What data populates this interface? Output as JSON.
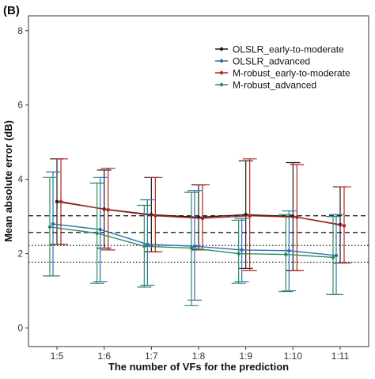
{
  "panel_label": "(B)",
  "chart_data": {
    "type": "line",
    "xlabel": "The number of VFs for the prediction",
    "ylabel": "Mean absolute error (dB)",
    "categories": [
      "1:5",
      "1:6",
      "1:7",
      "1:8",
      "1:9",
      "1:10",
      "1:11"
    ],
    "ylim": [
      -0.5,
      8.4
    ],
    "yticks": [
      0,
      2,
      4,
      6,
      8
    ],
    "grid": false,
    "legend_position": "top-right",
    "series": [
      {
        "name": "OLSLR_early-to-moderate",
        "color": "#1a1a1a",
        "values": [
          3.4,
          3.2,
          3.05,
          2.98,
          3.05,
          3.0,
          2.78
        ],
        "lower": [
          2.25,
          2.15,
          2.05,
          2.1,
          1.6,
          1.55,
          1.75
        ],
        "upper": [
          4.55,
          4.25,
          4.05,
          3.85,
          4.5,
          4.45,
          3.8
        ]
      },
      {
        "name": "OLSLR_advanced",
        "color": "#2a6fb5",
        "values": [
          2.8,
          2.65,
          2.25,
          2.2,
          2.1,
          2.08,
          1.95
        ],
        "lower": [
          1.4,
          1.25,
          1.15,
          0.75,
          1.25,
          1.0,
          0.9
        ],
        "upper": [
          4.2,
          4.05,
          3.45,
          3.7,
          2.95,
          3.15,
          3.05
        ]
      },
      {
        "name": "M-robust_early-to-moderate",
        "color": "#b22222",
        "values": [
          3.4,
          3.18,
          3.02,
          2.95,
          3.02,
          2.98,
          2.75
        ],
        "lower": [
          2.25,
          2.1,
          2.05,
          2.1,
          1.55,
          1.55,
          1.75
        ],
        "upper": [
          4.55,
          4.3,
          4.05,
          3.85,
          4.55,
          4.4,
          3.8
        ]
      },
      {
        "name": "M-robust_advanced",
        "color": "#2e8b57",
        "values": [
          2.72,
          2.55,
          2.2,
          2.15,
          2.0,
          1.98,
          1.9
        ],
        "lower": [
          1.4,
          1.2,
          1.1,
          0.6,
          1.2,
          0.98,
          0.9
        ],
        "upper": [
          4.05,
          3.9,
          3.3,
          3.65,
          2.9,
          3.05,
          3.0
        ]
      }
    ],
    "reference_lines": [
      {
        "y": 3.02,
        "style": "dashed"
      },
      {
        "y": 2.57,
        "style": "dashed"
      },
      {
        "y": 2.22,
        "style": "dotted"
      },
      {
        "y": 1.77,
        "style": "dotted"
      }
    ]
  }
}
